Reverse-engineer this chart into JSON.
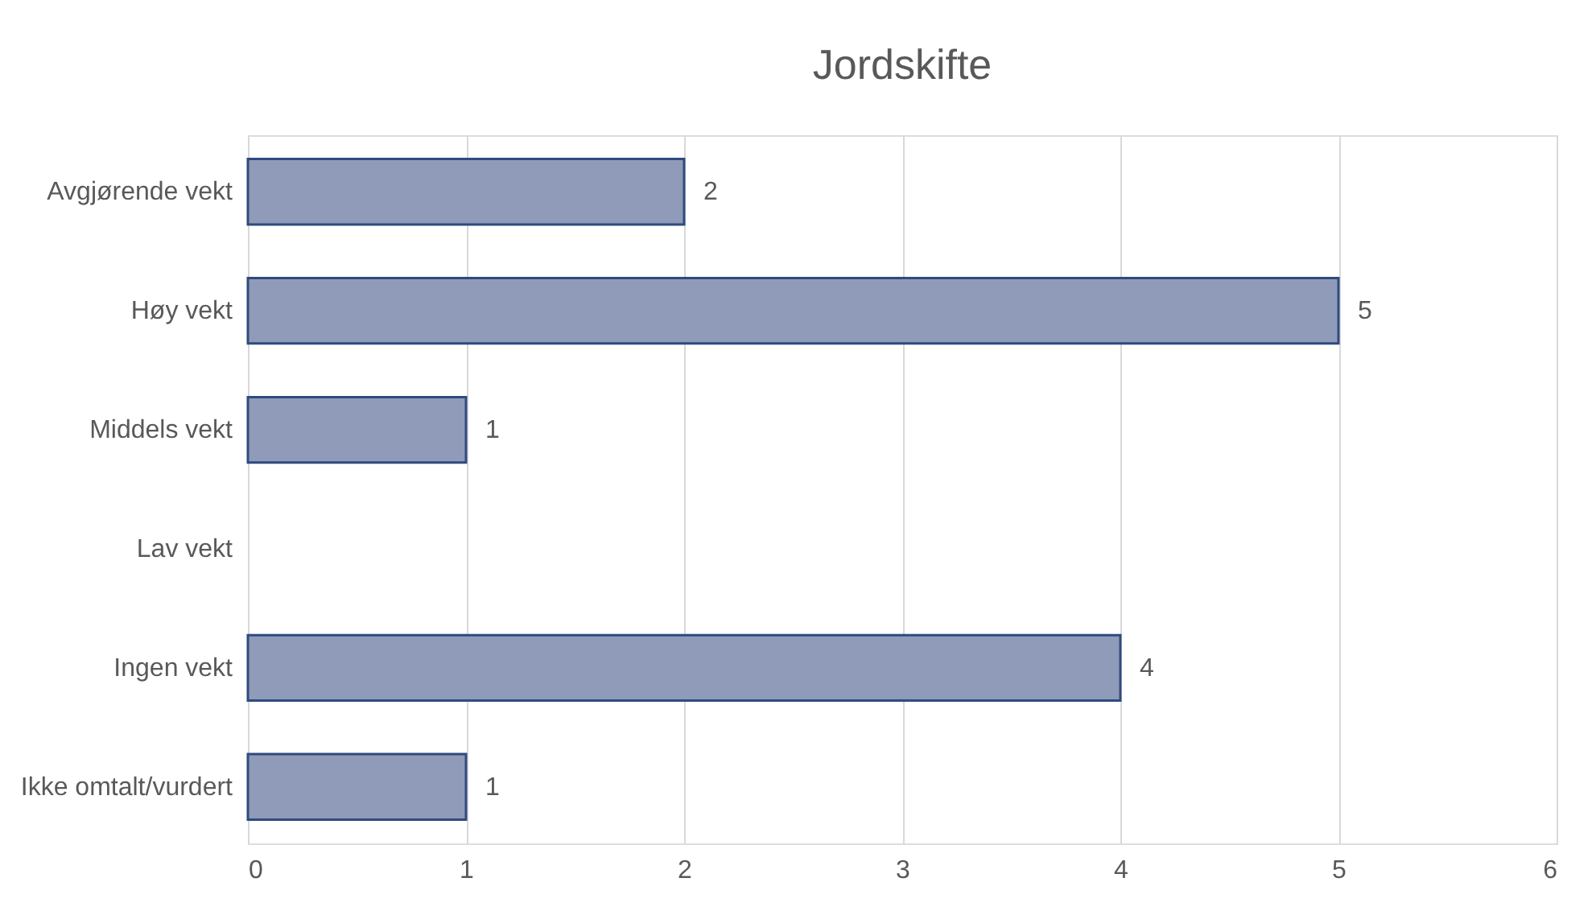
{
  "chart_data": {
    "type": "bar",
    "orientation": "horizontal",
    "title": "Jordskifte",
    "categories": [
      "Avgjørende vekt",
      "Høy vekt",
      "Middels vekt",
      "Lav vekt",
      "Ingen vekt",
      "Ikke omtalt/vurdert"
    ],
    "values": [
      2,
      5,
      1,
      null,
      4,
      1
    ],
    "value_labels": [
      "2",
      "5",
      "1",
      null,
      "4",
      "1"
    ],
    "color": "#8f9bb8",
    "xlim": [
      0,
      6
    ],
    "xticks": [
      0,
      1,
      2,
      3,
      4,
      5,
      6
    ],
    "grid": "x"
  }
}
